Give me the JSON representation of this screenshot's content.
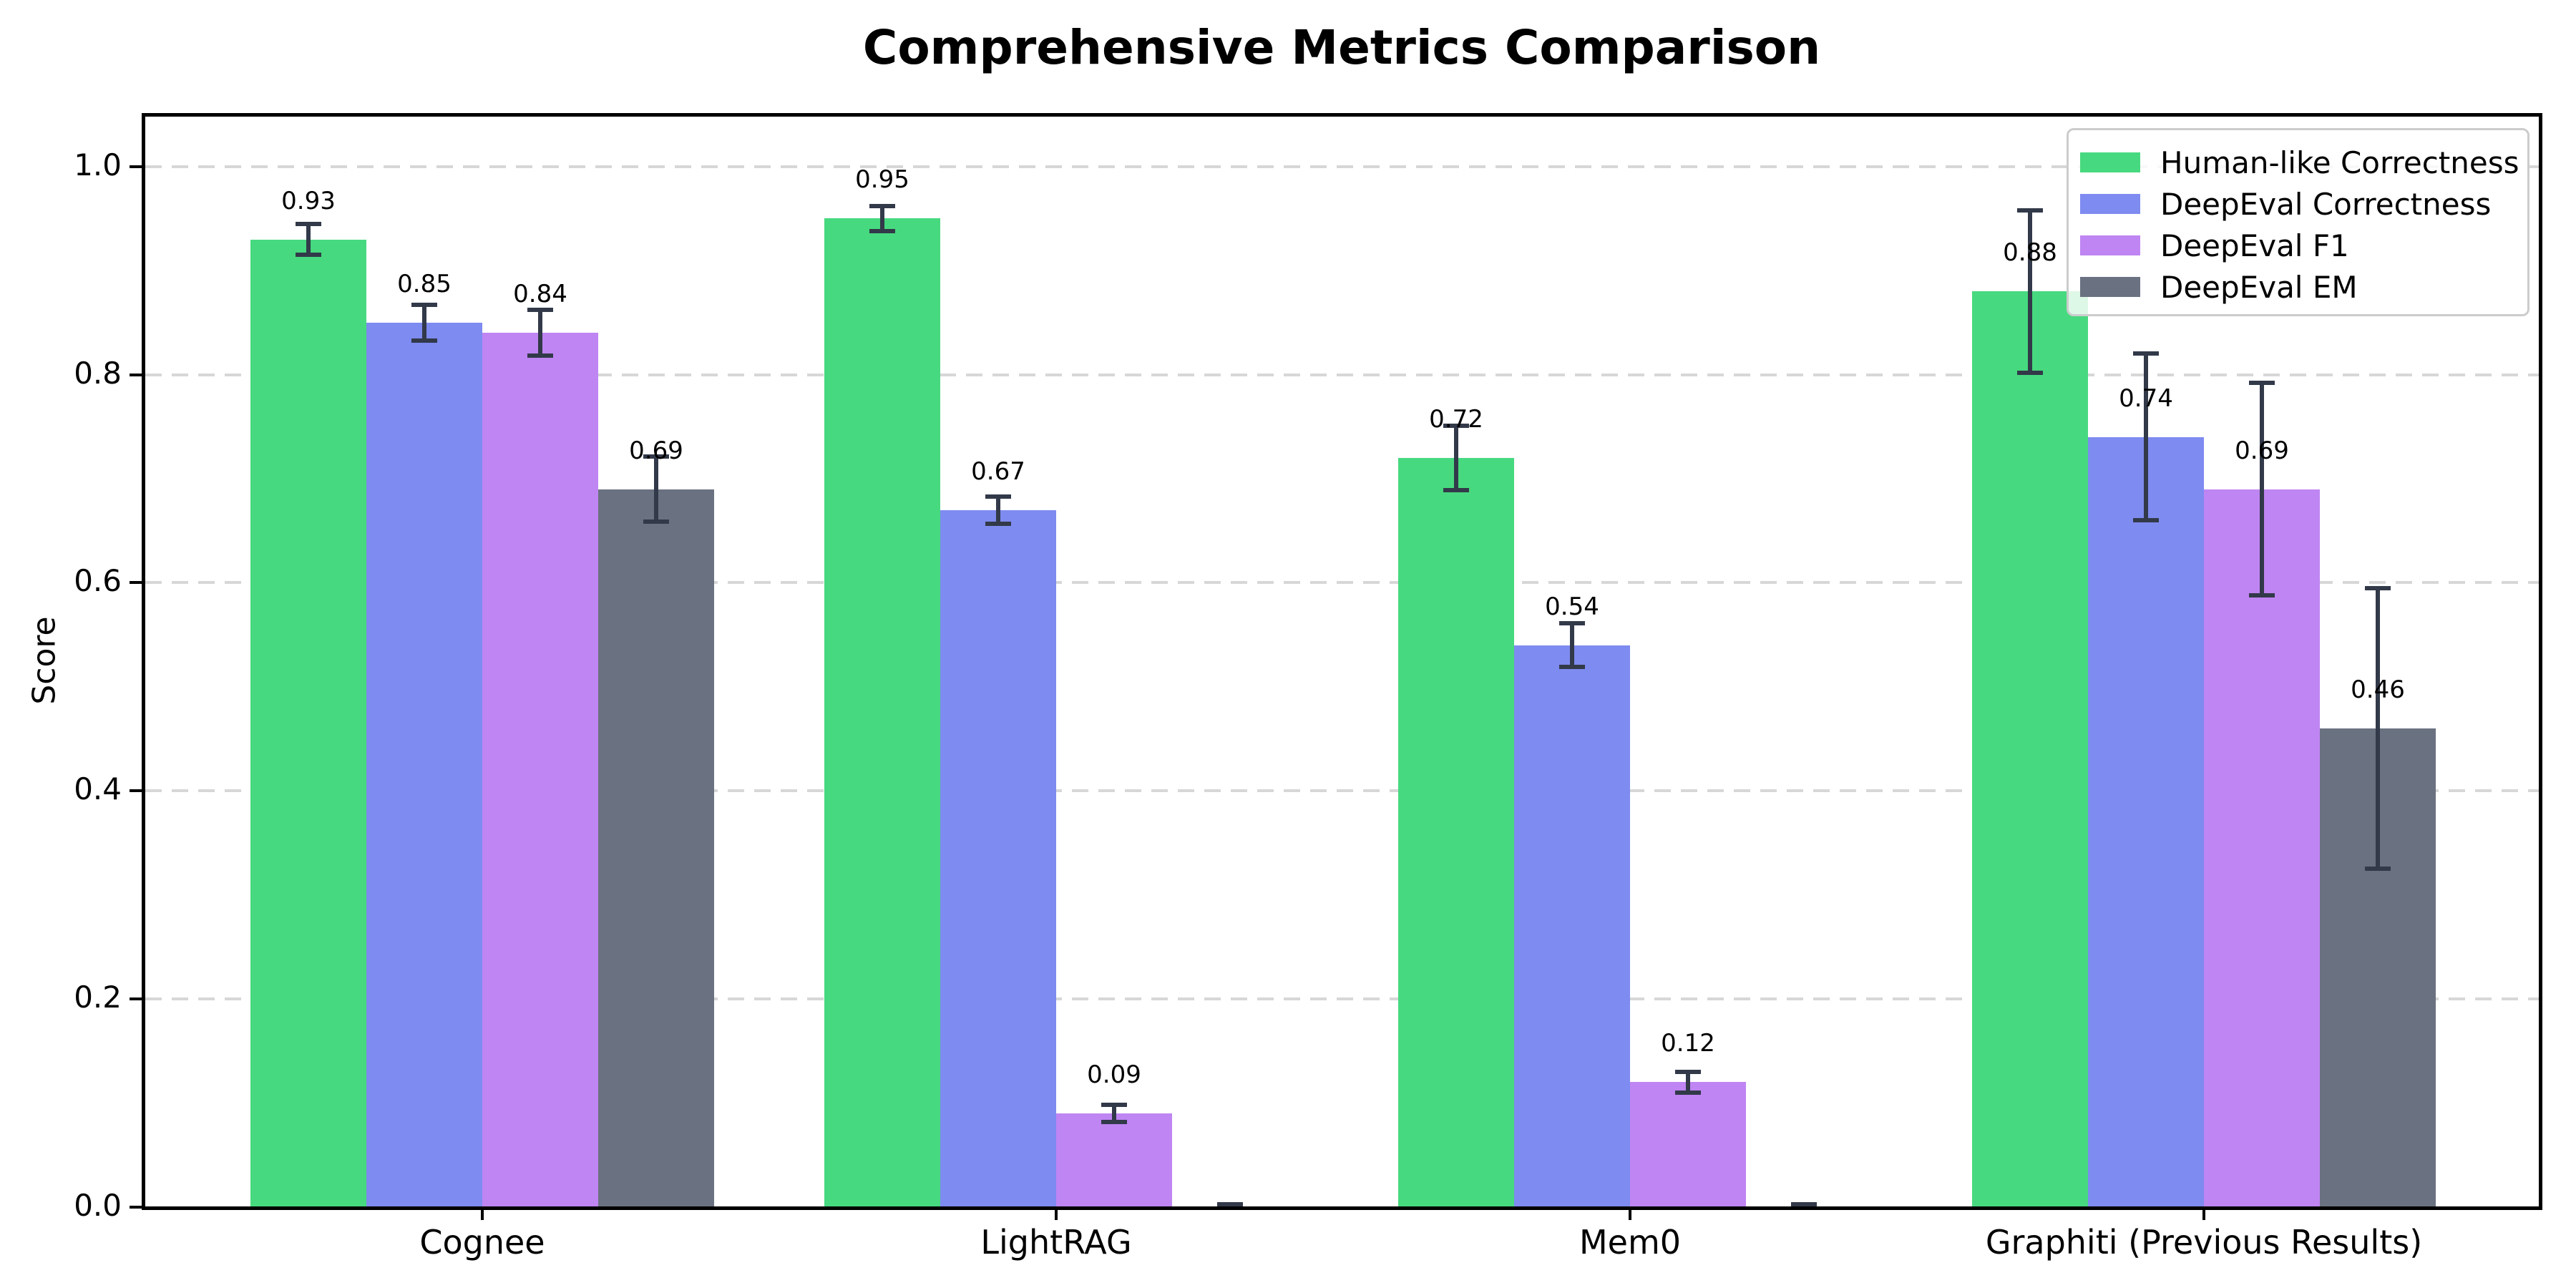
{
  "chart_data": {
    "type": "bar",
    "title": "Comprehensive Metrics Comparison",
    "xlabel": "",
    "ylabel": "Score",
    "categories": [
      "Cognee",
      "LightRAG",
      "Mem0",
      "Graphiti (Previous Results)"
    ],
    "series": [
      {
        "name": "Human-like Correctness",
        "color": "#47d97f",
        "values": [
          0.93,
          0.95,
          0.72,
          0.88
        ],
        "errors": [
          0.015,
          0.012,
          0.031,
          0.078
        ],
        "labels": [
          "0.93",
          "0.95",
          "0.72",
          "0.88"
        ]
      },
      {
        "name": "DeepEval Correctness",
        "color": "#7e8bf0",
        "values": [
          0.85,
          0.67,
          0.54,
          0.74
        ],
        "errors": [
          0.017,
          0.013,
          0.021,
          0.08
        ],
        "labels": [
          "0.85",
          "0.67",
          "0.54",
          "0.74"
        ]
      },
      {
        "name": "DeepEval F1",
        "color": "#bf85f3",
        "values": [
          0.84,
          0.09,
          0.12,
          0.69
        ],
        "errors": [
          0.022,
          0.008,
          0.01,
          0.102
        ],
        "labels": [
          "0.84",
          "0.09",
          "0.12",
          "0.69"
        ]
      },
      {
        "name": "DeepEval EM",
        "color": "#6a7180",
        "values": [
          0.69,
          0.0,
          0.0,
          0.46
        ],
        "errors": [
          0.031,
          0.003,
          0.003,
          0.135
        ],
        "labels": [
          "0.69",
          "",
          "",
          "0.46"
        ]
      }
    ],
    "yticks": [
      "0.0",
      "0.2",
      "0.4",
      "0.6",
      "0.8",
      "1.0"
    ],
    "ylim": [
      0,
      1.05
    ],
    "grid": "horizontal-dashed",
    "legend_position": "upper-right",
    "error_bar_color": "#323949",
    "grid_color": "#d7d7d7"
  }
}
